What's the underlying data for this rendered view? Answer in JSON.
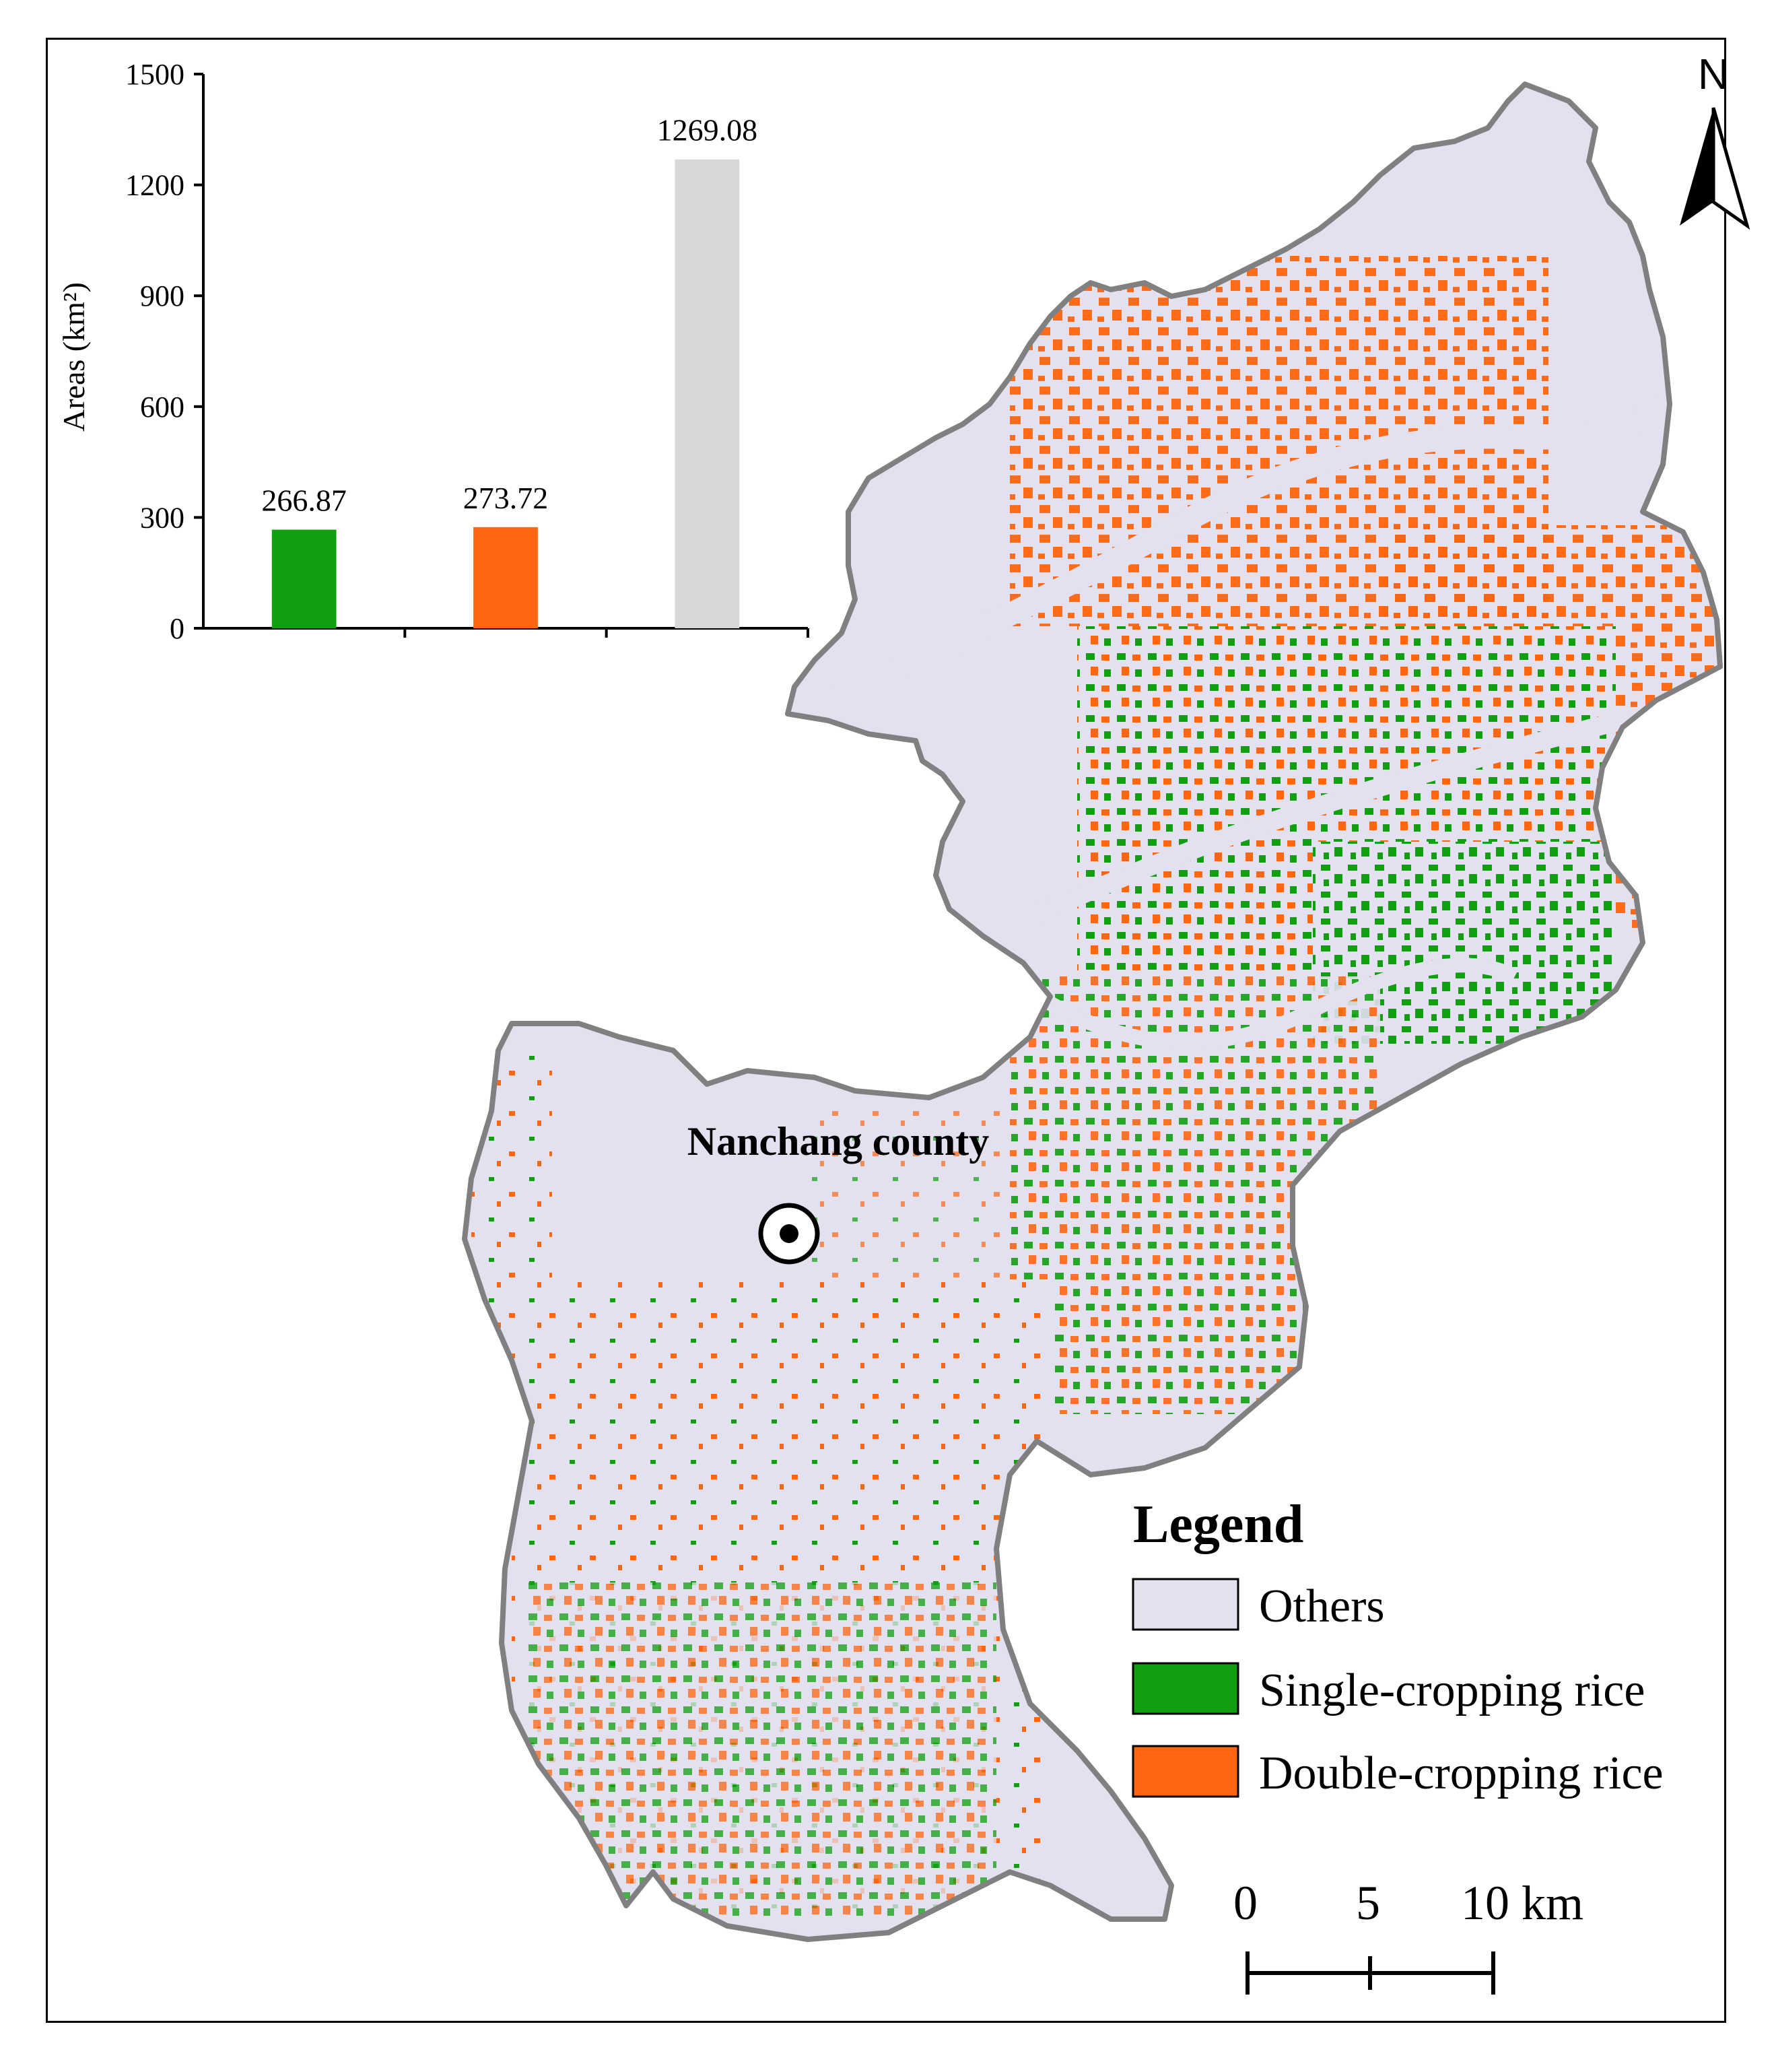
{
  "map": {
    "place_label": "Nanchang county",
    "north_label": "N",
    "legend": {
      "title": "Legend",
      "items": [
        {
          "label": "Others",
          "color": "#e3e0ef"
        },
        {
          "label": "Single-cropping rice",
          "color": "#109f10"
        },
        {
          "label": "Double-cropping rice",
          "color": "#ff6610"
        }
      ]
    },
    "scale_bar": {
      "labels": [
        "0",
        "5",
        "10 km"
      ]
    },
    "colors": {
      "outline": "#808080",
      "land": "#e3e0ef",
      "single": "#109f10",
      "double": "#ff6610"
    }
  },
  "chart_data": {
    "type": "bar",
    "ylabel": "Areas (km²)",
    "ylim": [
      0,
      1500
    ],
    "yticks": [
      "0",
      "300",
      "600",
      "900",
      "1200",
      "1500"
    ],
    "series": [
      {
        "values": [
          266.87,
          273.72,
          1269.08
        ]
      }
    ],
    "value_labels": [
      "266.87",
      "273.72",
      "1269.08"
    ],
    "bar_colors": [
      "#109f10",
      "#ff6610",
      "#d8d8d8"
    ],
    "grid": false
  }
}
